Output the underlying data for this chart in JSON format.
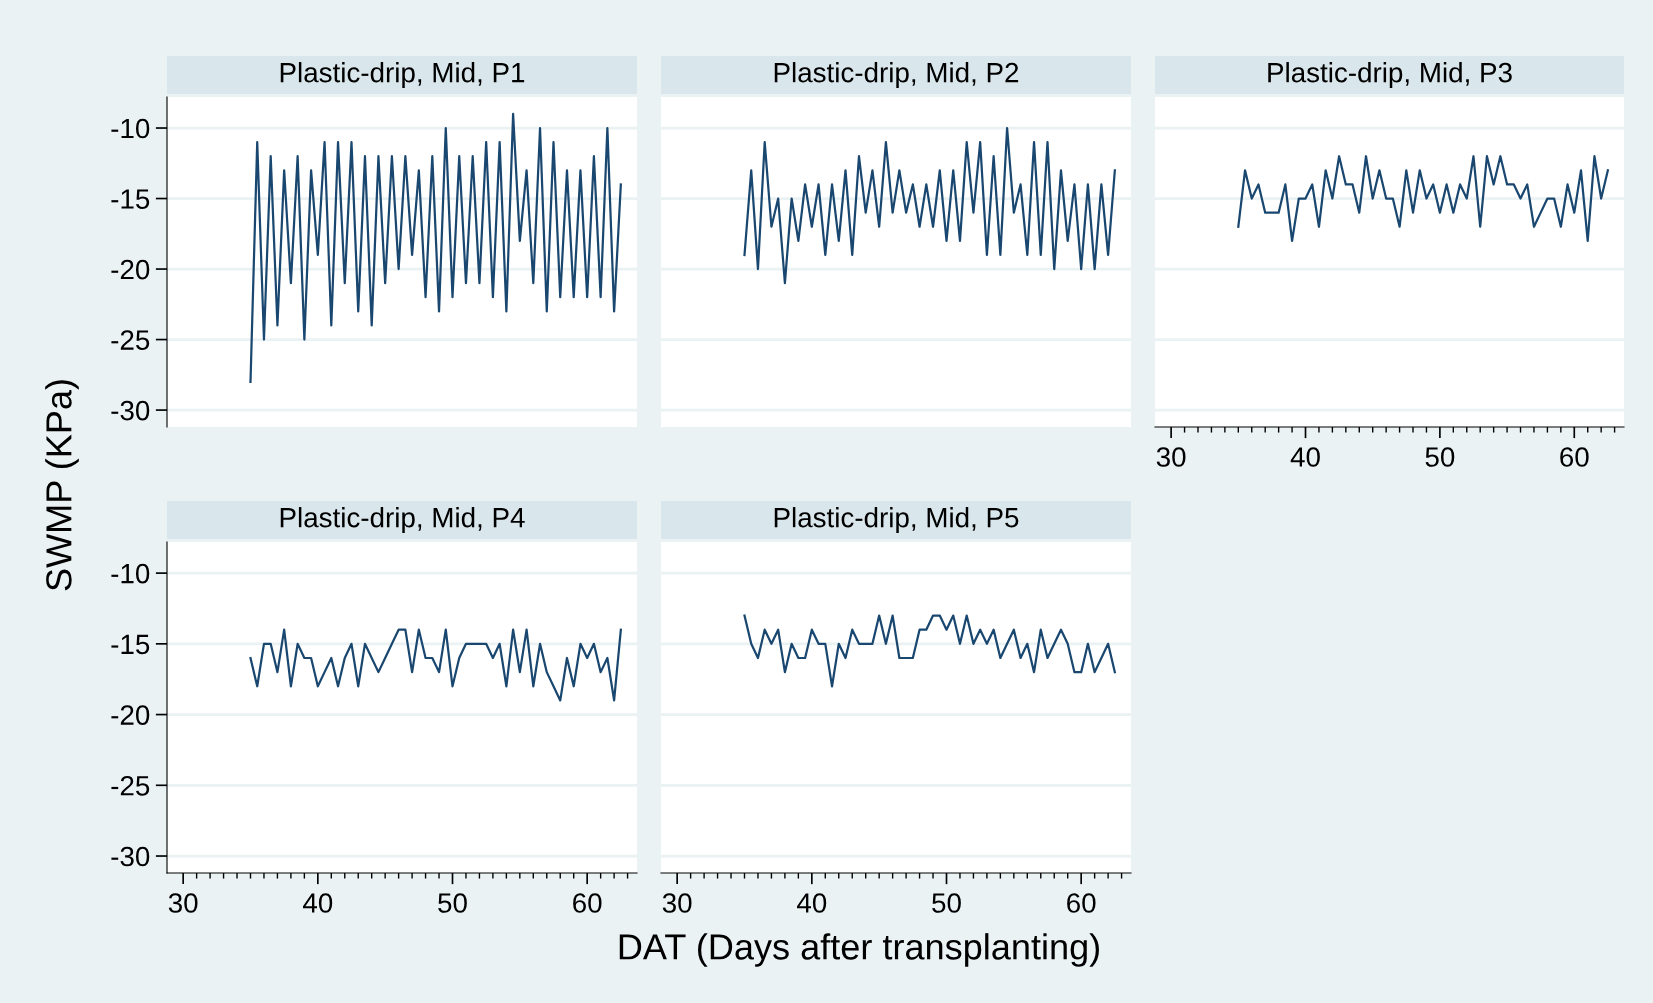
{
  "chart_data": [
    {
      "type": "line",
      "title": "Plastic-drip, Mid, P1",
      "ylabel": "SWMP (KPa)",
      "tick_labels": "y",
      "grid": "y",
      "marker": "none",
      "line_style": "solid",
      "xlim": [
        28.8,
        63.7
      ],
      "ylim": [
        -31.2,
        -7.8
      ],
      "yticks": [
        -30,
        -25,
        -20,
        -15,
        -10
      ],
      "x": [
        35,
        35.5,
        36,
        36.5,
        37,
        37.5,
        38,
        38.5,
        39,
        39.5,
        40,
        40.5,
        41,
        41.5,
        42,
        42.5,
        43,
        43.5,
        44,
        44.5,
        45,
        45.5,
        46,
        46.5,
        47,
        47.5,
        48,
        48.5,
        49,
        49.5,
        50,
        50.5,
        51,
        51.5,
        52,
        52.5,
        53,
        53.5,
        54,
        54.5,
        55,
        55.5,
        56,
        56.5,
        57,
        57.5,
        58,
        58.5,
        59,
        59.5,
        60,
        60.5,
        61,
        61.5,
        62,
        62.5
      ],
      "series": [
        {
          "color": "#1a476f",
          "values": [
            -28,
            -11,
            -25,
            -12,
            -24,
            -13,
            -21,
            -12,
            -25,
            -13,
            -19,
            -11,
            -24,
            -11,
            -21,
            -11,
            -23,
            -12,
            -24,
            -12,
            -21,
            -12,
            -20,
            -12,
            -19,
            -13,
            -22,
            -12,
            -23,
            -10,
            -22,
            -12,
            -21,
            -12,
            -21,
            -11,
            -22,
            -11,
            -23,
            -9,
            -18,
            -13,
            -21,
            -10,
            -23,
            -11,
            -22,
            -13,
            -22,
            -13,
            -22,
            -12,
            -22,
            -10,
            -23,
            -14
          ]
        }
      ]
    },
    {
      "type": "line",
      "title": "Plastic-drip, Mid, P2",
      "tick_labels": false,
      "grid": "y",
      "marker": "none",
      "line_style": "solid",
      "xlim": [
        28.8,
        63.7
      ],
      "ylim": [
        -31.2,
        -7.8
      ],
      "yticks": [
        -30,
        -25,
        -20,
        -15,
        -10
      ],
      "x": [
        35,
        35.5,
        36,
        36.5,
        37,
        37.5,
        38,
        38.5,
        39,
        39.5,
        40,
        40.5,
        41,
        41.5,
        42,
        42.5,
        43,
        43.5,
        44,
        44.5,
        45,
        45.5,
        46,
        46.5,
        47,
        47.5,
        48,
        48.5,
        49,
        49.5,
        50,
        50.5,
        51,
        51.5,
        52,
        52.5,
        53,
        53.5,
        54,
        54.5,
        55,
        55.5,
        56,
        56.5,
        57,
        57.5,
        58,
        58.5,
        59,
        59.5,
        60,
        60.5,
        61,
        61.5,
        62,
        62.5
      ],
      "series": [
        {
          "color": "#1a476f",
          "values": [
            -19,
            -13,
            -20,
            -11,
            -17,
            -15,
            -21,
            -15,
            -18,
            -14,
            -17,
            -14,
            -19,
            -14,
            -18,
            -13,
            -19,
            -12,
            -16,
            -13,
            -17,
            -11,
            -16,
            -13,
            -16,
            -14,
            -17,
            -14,
            -17,
            -13,
            -18,
            -13,
            -18,
            -11,
            -16,
            -11,
            -19,
            -12,
            -19,
            -10,
            -16,
            -14,
            -19,
            -11,
            -19,
            -11,
            -20,
            -13,
            -18,
            -14,
            -20,
            -14,
            -20,
            -14,
            -19,
            -13
          ]
        }
      ]
    },
    {
      "type": "line",
      "title": "Plastic-drip, Mid, P3",
      "tick_labels": "x",
      "grid": "y",
      "marker": "none",
      "line_style": "solid",
      "xlim": [
        28.8,
        63.7
      ],
      "ylim": [
        -31.2,
        -7.8
      ],
      "yticks": [
        -30,
        -25,
        -20,
        -15,
        -10
      ],
      "xticks": [
        30,
        {
          "value": 31,
          "label": null
        },
        {
          "value": 32,
          "label": null
        },
        {
          "value": 33,
          "label": null
        },
        {
          "value": 34,
          "label": null
        },
        {
          "value": 35,
          "label": null
        },
        {
          "value": 36,
          "label": null
        },
        {
          "value": 37,
          "label": null
        },
        {
          "value": 38,
          "label": null
        },
        {
          "value": 39,
          "label": null
        },
        40,
        {
          "value": 41,
          "label": null
        },
        {
          "value": 42,
          "label": null
        },
        {
          "value": 43,
          "label": null
        },
        {
          "value": 44,
          "label": null
        },
        {
          "value": 45,
          "label": null
        },
        {
          "value": 46,
          "label": null
        },
        {
          "value": 47,
          "label": null
        },
        {
          "value": 48,
          "label": null
        },
        {
          "value": 49,
          "label": null
        },
        50,
        {
          "value": 51,
          "label": null
        },
        {
          "value": 52,
          "label": null
        },
        {
          "value": 53,
          "label": null
        },
        {
          "value": 54,
          "label": null
        },
        {
          "value": 55,
          "label": null
        },
        {
          "value": 56,
          "label": null
        },
        {
          "value": 57,
          "label": null
        },
        {
          "value": 58,
          "label": null
        },
        {
          "value": 59,
          "label": null
        },
        60,
        {
          "value": 61,
          "label": null
        },
        {
          "value": 62,
          "label": null
        },
        {
          "value": 63,
          "label": null
        }
      ],
      "x": [
        35,
        35.5,
        36,
        36.5,
        37,
        37.5,
        38,
        38.5,
        39,
        39.5,
        40,
        40.5,
        41,
        41.5,
        42,
        42.5,
        43,
        43.5,
        44,
        44.5,
        45,
        45.5,
        46,
        46.5,
        47,
        47.5,
        48,
        48.5,
        49,
        49.5,
        50,
        50.5,
        51,
        51.5,
        52,
        52.5,
        53,
        53.5,
        54,
        54.5,
        55,
        55.5,
        56,
        56.5,
        57,
        57.5,
        58,
        58.5,
        59,
        59.5,
        60,
        60.5,
        61,
        61.5,
        62,
        62.5
      ],
      "series": [
        {
          "color": "#1a476f",
          "values": [
            -17,
            -13,
            -15,
            -14,
            -16,
            -16,
            -16,
            -14,
            -18,
            -15,
            -15,
            -14,
            -17,
            -13,
            -15,
            -12,
            -14,
            -14,
            -16,
            -12,
            -15,
            -13,
            -15,
            -15,
            -17,
            -13,
            -16,
            -13,
            -15,
            -14,
            -16,
            -14,
            -16,
            -14,
            -15,
            -12,
            -17,
            -12,
            -14,
            -12,
            -14,
            -14,
            -15,
            -14,
            -17,
            -16,
            -15,
            -15,
            -17,
            -14,
            -16,
            -13,
            -18,
            -12,
            -15,
            -13
          ]
        }
      ]
    },
    {
      "type": "line",
      "title": "Plastic-drip, Mid, P4",
      "grid": "y",
      "marker": "none",
      "line_style": "solid",
      "xlim": [
        28.8,
        63.7
      ],
      "ylim": [
        -31.2,
        -7.8
      ],
      "yticks": [
        -30,
        -25,
        -20,
        -15,
        -10
      ],
      "xticks": [
        30,
        {
          "value": 31,
          "label": null
        },
        {
          "value": 32,
          "label": null
        },
        {
          "value": 33,
          "label": null
        },
        {
          "value": 34,
          "label": null
        },
        {
          "value": 35,
          "label": null
        },
        {
          "value": 36,
          "label": null
        },
        {
          "value": 37,
          "label": null
        },
        {
          "value": 38,
          "label": null
        },
        {
          "value": 39,
          "label": null
        },
        40,
        {
          "value": 41,
          "label": null
        },
        {
          "value": 42,
          "label": null
        },
        {
          "value": 43,
          "label": null
        },
        {
          "value": 44,
          "label": null
        },
        {
          "value": 45,
          "label": null
        },
        {
          "value": 46,
          "label": null
        },
        {
          "value": 47,
          "label": null
        },
        {
          "value": 48,
          "label": null
        },
        {
          "value": 49,
          "label": null
        },
        50,
        {
          "value": 51,
          "label": null
        },
        {
          "value": 52,
          "label": null
        },
        {
          "value": 53,
          "label": null
        },
        {
          "value": 54,
          "label": null
        },
        {
          "value": 55,
          "label": null
        },
        {
          "value": 56,
          "label": null
        },
        {
          "value": 57,
          "label": null
        },
        {
          "value": 58,
          "label": null
        },
        {
          "value": 59,
          "label": null
        },
        60,
        {
          "value": 61,
          "label": null
        },
        {
          "value": 62,
          "label": null
        },
        {
          "value": 63,
          "label": null
        }
      ],
      "x": [
        35,
        35.5,
        36,
        36.5,
        37,
        37.5,
        38,
        38.5,
        39,
        39.5,
        40,
        40.5,
        41,
        41.5,
        42,
        42.5,
        43,
        43.5,
        44,
        44.5,
        45,
        45.5,
        46,
        46.5,
        47,
        47.5,
        48,
        48.5,
        49,
        49.5,
        50,
        50.5,
        51,
        51.5,
        52,
        52.5,
        53,
        53.5,
        54,
        54.5,
        55,
        55.5,
        56,
        56.5,
        57,
        57.5,
        58,
        58.5,
        59,
        59.5,
        60,
        60.5,
        61,
        61.5,
        62,
        62.5
      ],
      "series": [
        {
          "color": "#1a476f",
          "values": [
            -16,
            -18,
            -15,
            -15,
            -17,
            -14,
            -18,
            -15,
            -16,
            -16,
            -18,
            -17,
            -16,
            -18,
            -16,
            -15,
            -18,
            -15,
            -16,
            -17,
            -16,
            -15,
            -14,
            -14,
            -17,
            -14,
            -16,
            -16,
            -17,
            -14,
            -18,
            -16,
            -15,
            -15,
            -15,
            -15,
            -16,
            -15,
            -18,
            -14,
            -17,
            -14,
            -18,
            -15,
            -17,
            -18,
            -19,
            -16,
            -18,
            -15,
            -16,
            -15,
            -17,
            -16,
            -19,
            -14
          ]
        }
      ]
    },
    {
      "type": "line",
      "title": "Plastic-drip, Mid, P5",
      "xlabel": "DAT (Days after transplanting)",
      "tick_labels": "x",
      "grid": "y",
      "marker": "none",
      "line_style": "solid",
      "xlim": [
        28.8,
        63.7
      ],
      "ylim": [
        -31.2,
        -7.8
      ],
      "yticks": [
        -30,
        -25,
        -20,
        -15,
        -10
      ],
      "xticks": [
        30,
        {
          "value": 31,
          "label": null
        },
        {
          "value": 32,
          "label": null
        },
        {
          "value": 33,
          "label": null
        },
        {
          "value": 34,
          "label": null
        },
        {
          "value": 35,
          "label": null
        },
        {
          "value": 36,
          "label": null
        },
        {
          "value": 37,
          "label": null
        },
        {
          "value": 38,
          "label": null
        },
        {
          "value": 39,
          "label": null
        },
        40,
        {
          "value": 41,
          "label": null
        },
        {
          "value": 42,
          "label": null
        },
        {
          "value": 43,
          "label": null
        },
        {
          "value": 44,
          "label": null
        },
        {
          "value": 45,
          "label": null
        },
        {
          "value": 46,
          "label": null
        },
        {
          "value": 47,
          "label": null
        },
        {
          "value": 48,
          "label": null
        },
        {
          "value": 49,
          "label": null
        },
        50,
        {
          "value": 51,
          "label": null
        },
        {
          "value": 52,
          "label": null
        },
        {
          "value": 53,
          "label": null
        },
        {
          "value": 54,
          "label": null
        },
        {
          "value": 55,
          "label": null
        },
        {
          "value": 56,
          "label": null
        },
        {
          "value": 57,
          "label": null
        },
        {
          "value": 58,
          "label": null
        },
        {
          "value": 59,
          "label": null
        },
        60,
        {
          "value": 61,
          "label": null
        },
        {
          "value": 62,
          "label": null
        },
        {
          "value": 63,
          "label": null
        }
      ],
      "x": [
        35,
        35.5,
        36,
        36.5,
        37,
        37.5,
        38,
        38.5,
        39,
        39.5,
        40,
        40.5,
        41,
        41.5,
        42,
        42.5,
        43,
        43.5,
        44,
        44.5,
        45,
        45.5,
        46,
        46.5,
        47,
        47.5,
        48,
        48.5,
        49,
        49.5,
        50,
        50.5,
        51,
        51.5,
        52,
        52.5,
        53,
        53.5,
        54,
        54.5,
        55,
        55.5,
        56,
        56.5,
        57,
        57.5,
        58,
        58.5,
        59,
        59.5,
        60,
        60.5,
        61,
        61.5,
        62,
        62.5
      ],
      "series": [
        {
          "color": "#1a476f",
          "values": [
            -13,
            -15,
            -16,
            -14,
            -15,
            -14,
            -17,
            -15,
            -16,
            -16,
            -14,
            -15,
            -15,
            -18,
            -15,
            -16,
            -14,
            -15,
            -15,
            -15,
            -13,
            -15,
            -13,
            -16,
            -16,
            -16,
            -14,
            -14,
            -13,
            -13,
            -14,
            -13,
            -15,
            -13,
            -15,
            -14,
            -15,
            -14,
            -16,
            -15,
            -14,
            -16,
            -15,
            -17,
            -14,
            -16,
            -15,
            -14,
            -15,
            -17,
            -17,
            -15,
            -17,
            -16,
            -15,
            -17
          ]
        }
      ]
    }
  ]
}
